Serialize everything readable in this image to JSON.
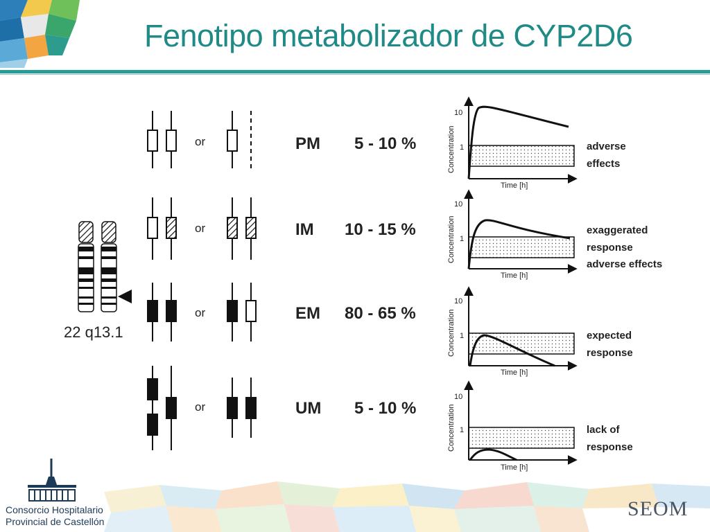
{
  "slide": {
    "title": "Fenotipo metabolizador de CYP2D6"
  },
  "chromosome": {
    "label": "22 q13.1"
  },
  "or_label": "or",
  "rows": [
    {
      "phenotype": "PM",
      "frequency": "5 - 10 %",
      "effect_lines": [
        "adverse",
        "effects"
      ],
      "y_ticks": [
        "10",
        "1"
      ],
      "ylabel": "Concentration",
      "xlabel": "Time [h]"
    },
    {
      "phenotype": "IM",
      "frequency": "10 - 15 %",
      "effect_lines": [
        "exaggerated",
        "response",
        "adverse effects"
      ],
      "y_ticks": [
        "10",
        "1"
      ],
      "ylabel": "Concentration",
      "xlabel": "Time [h]"
    },
    {
      "phenotype": "EM",
      "frequency": "80 - 65 %",
      "effect_lines": [
        "expected",
        "response"
      ],
      "y_ticks": [
        "10",
        "1"
      ],
      "ylabel": "Concentration",
      "xlabel": "Time [h]"
    },
    {
      "phenotype": "UM",
      "frequency": "5 - 10 %",
      "effect_lines": [
        "lack of",
        "response"
      ],
      "y_ticks": [
        "10",
        "1"
      ],
      "ylabel": "Concentration",
      "xlabel": "Time [h]"
    }
  ],
  "footer": {
    "org_line1": "Consorcio Hospitalario",
    "org_line2": "Provincial de Castellón",
    "society": "SEOM"
  },
  "colors": {
    "title": "#1f8a86",
    "rule": "#2a9c96",
    "ink": "#111111"
  }
}
